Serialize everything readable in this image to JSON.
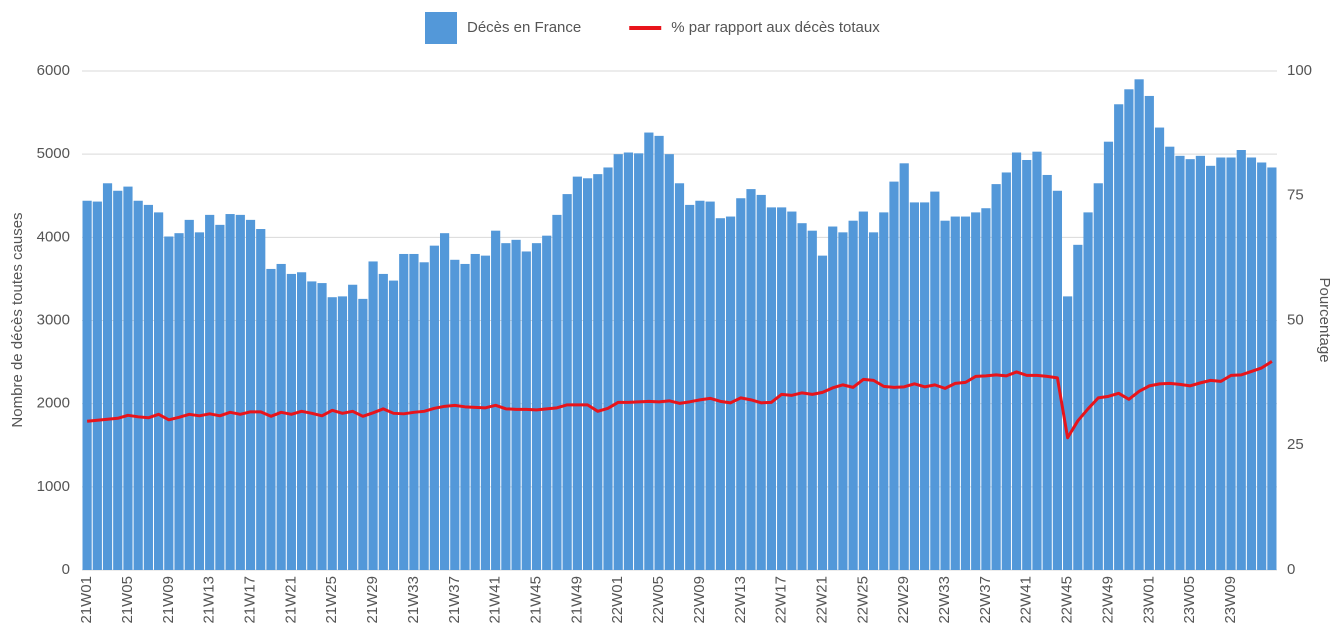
{
  "chart_data": {
    "type": "bar",
    "y_label": "Nombre de décès toutes causes",
    "y2_label": "Pourcentage",
    "ylim": [
      0,
      6000
    ],
    "yticks": [
      0,
      1000,
      2000,
      3000,
      4000,
      5000,
      6000
    ],
    "y2lim": [
      0,
      100
    ],
    "y2ticks": [
      0,
      25,
      50,
      75,
      100
    ],
    "grid": true,
    "legend": "top",
    "categories": [
      "21W01",
      null,
      null,
      null,
      "21W05",
      null,
      null,
      null,
      "21W09",
      null,
      null,
      null,
      "21W13",
      null,
      null,
      null,
      "21W17",
      null,
      null,
      null,
      "21W21",
      null,
      null,
      null,
      "21W25",
      null,
      null,
      null,
      "21W29",
      null,
      null,
      null,
      "21W33",
      null,
      null,
      null,
      "21W37",
      null,
      null,
      null,
      "21W41",
      null,
      null,
      null,
      "21W45",
      null,
      null,
      null,
      "21W49",
      null,
      null,
      null,
      "22W01",
      null,
      null,
      null,
      "22W05",
      null,
      null,
      null,
      "22W09",
      null,
      null,
      null,
      "22W13",
      null,
      null,
      null,
      "22W17",
      null,
      null,
      null,
      "22W21",
      null,
      null,
      null,
      "22W25",
      null,
      null,
      null,
      "22W29",
      null,
      null,
      null,
      "22W33",
      null,
      null,
      null,
      "22W37",
      null,
      null,
      null,
      "22W41",
      null,
      null,
      null,
      "22W45",
      null,
      null,
      null,
      "22W49",
      null,
      null,
      null,
      "23W01",
      null,
      null,
      null,
      "23W05",
      null,
      null,
      null,
      "23W09",
      null,
      null,
      null,
      null
    ],
    "series": [
      {
        "name": "Décès en France",
        "type": "bar",
        "color": "#5398d9",
        "values": [
          4440,
          4430,
          4650,
          4560,
          4610,
          4440,
          4390,
          4300,
          4010,
          4050,
          4210,
          4060,
          4270,
          4150,
          4280,
          4270,
          4210,
          4100,
          3620,
          3680,
          3560,
          3580,
          3470,
          3450,
          3280,
          3290,
          3430,
          3260,
          3710,
          3560,
          3480,
          3800,
          3800,
          3700,
          3900,
          4050,
          3730,
          3680,
          3800,
          3780,
          4080,
          3930,
          3970,
          3830,
          3930,
          4020,
          4270,
          4520,
          4730,
          4710,
          4760,
          4840,
          5000,
          5020,
          5010,
          5260,
          5220,
          5000,
          4650,
          4390,
          4440,
          4430,
          4230,
          4250,
          4470,
          4580,
          4510,
          4360,
          4360,
          4310,
          4170,
          4080,
          3780,
          4130,
          4060,
          4200,
          4310,
          4060,
          4300,
          4670,
          4890,
          4420,
          4420,
          4550,
          4200,
          4250,
          4250,
          4300,
          4350,
          4640,
          4780,
          5020,
          4930,
          5030,
          4750,
          4560,
          3290,
          3910,
          4300,
          4650,
          5150,
          5600,
          5780,
          5900,
          5700,
          5320,
          5090,
          4980,
          4940,
          4980,
          4860,
          4960,
          4960,
          5050,
          4960,
          4900,
          4840
        ]
      },
      {
        "name": "% par rapport aux décès totaux",
        "type": "line",
        "axis": "y2",
        "color": "#e8141b",
        "values": [
          29.8,
          30,
          30.2,
          30.4,
          31,
          30.7,
          30.5,
          31.2,
          30.1,
          30.6,
          31.2,
          30.9,
          31.3,
          30.9,
          31.6,
          31.2,
          31.7,
          31.7,
          30.8,
          31.6,
          31.2,
          31.8,
          31.4,
          30.9,
          32,
          31.4,
          31.8,
          30.8,
          31.5,
          32.3,
          31.4,
          31.3,
          31.6,
          31.8,
          32.4,
          32.8,
          33,
          32.7,
          32.6,
          32.5,
          33,
          32.3,
          32.2,
          32.2,
          32.1,
          32.3,
          32.5,
          33.1,
          33.1,
          33.1,
          31.8,
          32.4,
          33.6,
          33.6,
          33.7,
          33.8,
          33.7,
          33.9,
          33.4,
          33.7,
          34.1,
          34.4,
          33.8,
          33.5,
          34.5,
          34.1,
          33.5,
          33.6,
          35.2,
          35,
          35.5,
          35.2,
          35.6,
          36.5,
          37.1,
          36.6,
          38.2,
          38,
          36.8,
          36.6,
          36.7,
          37.3,
          36.7,
          37.1,
          36.4,
          37.4,
          37.6,
          38.8,
          38.9,
          39.1,
          38.9,
          39.7,
          39,
          39,
          38.8,
          38.5,
          26.5,
          29.9,
          32.3,
          34.5,
          34.8,
          35.4,
          34.2,
          35.8,
          36.9,
          37.3,
          37.4,
          37.2,
          36.9,
          37.5,
          38,
          37.8,
          39,
          39.1,
          39.8,
          40.5,
          41.8
        ]
      }
    ]
  }
}
